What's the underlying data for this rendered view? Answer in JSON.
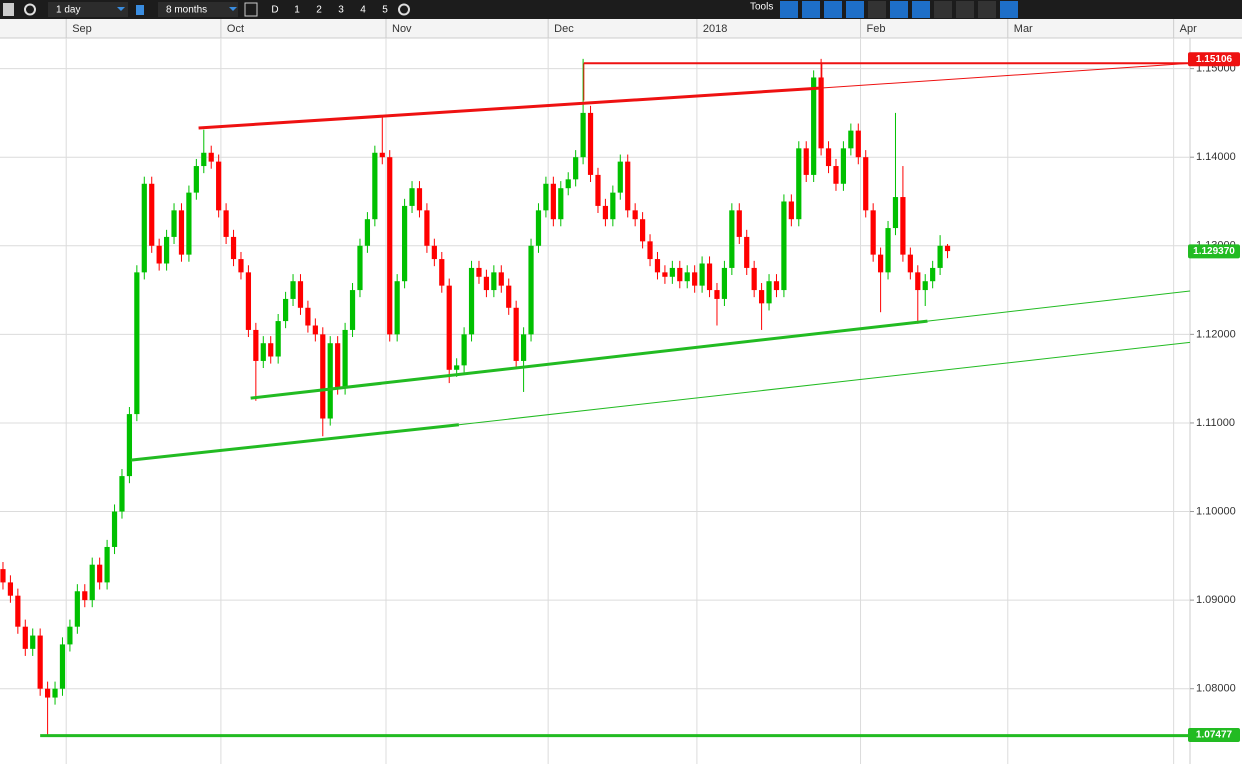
{
  "toolbar": {
    "interval": "1 day",
    "range": "8 months",
    "buttons": [
      "D",
      "1",
      "2",
      "3",
      "4",
      "5"
    ],
    "tools": "Tools"
  },
  "chart_data": {
    "type": "candlestick",
    "xlim": [
      0,
      160
    ],
    "ylim": [
      1.0715,
      1.1556
    ],
    "xticks": [
      {
        "value": 8.9,
        "label": "Sep"
      },
      {
        "value": 29.7,
        "label": "Oct"
      },
      {
        "value": 51.9,
        "label": "Nov"
      },
      {
        "value": 73.7,
        "label": "Dec"
      },
      {
        "value": 93.7,
        "label": "2018"
      },
      {
        "value": 115.7,
        "label": "Feb"
      },
      {
        "value": 135.5,
        "label": "Mar"
      },
      {
        "value": 157.8,
        "label": "Apr"
      }
    ],
    "yticks": [
      {
        "value": 1.08,
        "label": "1.08000"
      },
      {
        "value": 1.09,
        "label": "1.09000"
      },
      {
        "value": 1.1,
        "label": "1.10000"
      },
      {
        "value": 1.11,
        "label": "1.11000"
      },
      {
        "value": 1.12,
        "label": "1.12000"
      },
      {
        "value": 1.13,
        "label": "1.13000"
      },
      {
        "value": 1.14,
        "label": "1.14000"
      },
      {
        "value": 1.15,
        "label": "1.15000"
      }
    ],
    "grid": true,
    "up_color": "#00c000",
    "down_color": "#ff0000",
    "open": [
      1.0935,
      1.092,
      1.0905,
      1.087,
      1.0845,
      1.086,
      1.08,
      1.079,
      1.08,
      1.085,
      1.087,
      1.091,
      1.09,
      1.094,
      1.092,
      1.096,
      1.1,
      1.104,
      1.111,
      1.127,
      1.137,
      1.13,
      1.128,
      1.131,
      1.134,
      1.129,
      1.136,
      1.139,
      1.1405,
      1.1395,
      1.134,
      1.131,
      1.1285,
      1.127,
      1.1205,
      1.117,
      1.119,
      1.1175,
      1.1215,
      1.124,
      1.126,
      1.123,
      1.121,
      1.12,
      1.1105,
      1.119,
      1.114,
      1.1205,
      1.125,
      1.13,
      1.133,
      1.1405,
      1.14,
      1.12,
      1.126,
      1.1345,
      1.1365,
      1.134,
      1.13,
      1.1285,
      1.1255,
      1.116,
      1.1165,
      1.12,
      1.1275,
      1.1265,
      1.125,
      1.127,
      1.1255,
      1.123,
      1.117,
      1.12,
      1.13,
      1.134,
      1.137,
      1.133,
      1.1365,
      1.1375,
      1.14,
      1.145,
      1.138,
      1.1345,
      1.133,
      1.136,
      1.1395,
      1.134,
      1.133,
      1.1305,
      1.1285,
      1.127,
      1.1265,
      1.1275,
      1.126,
      1.127,
      1.1255,
      1.128,
      1.125,
      1.124,
      1.1275,
      1.134,
      1.131,
      1.1275,
      1.125,
      1.1235,
      1.126,
      1.125,
      1.135,
      1.133,
      1.141,
      1.138,
      1.149,
      1.141,
      1.139,
      1.137,
      1.141,
      1.143,
      1.14,
      1.134,
      1.129,
      1.127,
      1.132,
      1.1355,
      1.129,
      1.127,
      1.125,
      1.126,
      1.1275,
      1.13
    ],
    "high": [
      1.0943,
      1.0928,
      1.0913,
      1.0878,
      1.0868,
      1.0868,
      1.0808,
      1.0808,
      1.0858,
      1.0878,
      1.0918,
      1.0918,
      1.0948,
      1.0948,
      1.0968,
      1.1008,
      1.1048,
      1.1118,
      1.1278,
      1.1378,
      1.1378,
      1.1308,
      1.1318,
      1.1348,
      1.1348,
      1.1368,
      1.1398,
      1.1431,
      1.1413,
      1.1403,
      1.1348,
      1.1318,
      1.1293,
      1.1278,
      1.1213,
      1.1198,
      1.1198,
      1.1223,
      1.1248,
      1.1268,
      1.1268,
      1.1238,
      1.1218,
      1.1208,
      1.1198,
      1.1198,
      1.1213,
      1.1258,
      1.1308,
      1.1338,
      1.1413,
      1.1445,
      1.1408,
      1.1268,
      1.1353,
      1.1373,
      1.1373,
      1.1348,
      1.1308,
      1.1293,
      1.1263,
      1.1173,
      1.1208,
      1.1283,
      1.1283,
      1.1273,
      1.1278,
      1.1278,
      1.1263,
      1.1238,
      1.1208,
      1.1308,
      1.1348,
      1.1378,
      1.1378,
      1.1373,
      1.1383,
      1.1408,
      1.1511,
      1.1458,
      1.1388,
      1.1353,
      1.1368,
      1.1403,
      1.1403,
      1.1348,
      1.1338,
      1.1313,
      1.1293,
      1.1278,
      1.1283,
      1.1283,
      1.1278,
      1.1278,
      1.1288,
      1.1288,
      1.1258,
      1.1283,
      1.1348,
      1.1348,
      1.1318,
      1.1283,
      1.1258,
      1.1268,
      1.1268,
      1.1358,
      1.1358,
      1.1418,
      1.1418,
      1.1498,
      1.1511,
      1.1418,
      1.1398,
      1.1418,
      1.1438,
      1.1438,
      1.1408,
      1.1348,
      1.1298,
      1.1328,
      1.145,
      1.139,
      1.1298,
      1.1278,
      1.1268,
      1.1283,
      1.1312,
      1.1302
    ],
    "low": [
      1.0912,
      1.0897,
      1.0862,
      1.0837,
      1.0837,
      1.0792,
      1.0747,
      1.0782,
      1.0792,
      1.0842,
      1.0862,
      1.0892,
      1.0892,
      1.0912,
      1.0912,
      1.0952,
      1.0992,
      1.1032,
      1.1102,
      1.1262,
      1.1292,
      1.1272,
      1.1272,
      1.1302,
      1.1282,
      1.1282,
      1.1352,
      1.1382,
      1.1387,
      1.1332,
      1.1302,
      1.1277,
      1.1262,
      1.1197,
      1.1125,
      1.1162,
      1.1167,
      1.1167,
      1.1207,
      1.1232,
      1.1222,
      1.1202,
      1.1192,
      1.1085,
      1.1097,
      1.1132,
      1.1132,
      1.1197,
      1.1242,
      1.1292,
      1.1322,
      1.1392,
      1.1192,
      1.1192,
      1.1252,
      1.1337,
      1.1332,
      1.1292,
      1.1277,
      1.1247,
      1.1145,
      1.1152,
      1.1157,
      1.1192,
      1.1257,
      1.1242,
      1.1242,
      1.1247,
      1.1222,
      1.1162,
      1.1135,
      1.1192,
      1.1292,
      1.1332,
      1.1322,
      1.1322,
      1.1357,
      1.1367,
      1.1392,
      1.1372,
      1.1337,
      1.1322,
      1.1322,
      1.1352,
      1.1332,
      1.1322,
      1.1297,
      1.1277,
      1.1262,
      1.1257,
      1.1257,
      1.1252,
      1.1252,
      1.1247,
      1.1247,
      1.1242,
      1.121,
      1.1232,
      1.1267,
      1.1302,
      1.1267,
      1.1242,
      1.1205,
      1.1227,
      1.1242,
      1.1242,
      1.1322,
      1.1322,
      1.1372,
      1.1372,
      1.1402,
      1.1382,
      1.1362,
      1.1362,
      1.1402,
      1.1392,
      1.1332,
      1.1282,
      1.1225,
      1.1262,
      1.1312,
      1.1282,
      1.1262,
      1.1212,
      1.1232,
      1.1252,
      1.1267,
      1.1286
    ],
    "close": [
      1.092,
      1.0905,
      1.087,
      1.0845,
      1.086,
      1.08,
      1.079,
      1.08,
      1.085,
      1.087,
      1.091,
      1.09,
      1.094,
      1.092,
      1.096,
      1.1,
      1.104,
      1.111,
      1.127,
      1.137,
      1.13,
      1.128,
      1.131,
      1.134,
      1.129,
      1.136,
      1.139,
      1.1405,
      1.1395,
      1.134,
      1.131,
      1.1285,
      1.127,
      1.1205,
      1.117,
      1.119,
      1.1175,
      1.1215,
      1.124,
      1.126,
      1.123,
      1.121,
      1.12,
      1.1105,
      1.119,
      1.114,
      1.1205,
      1.125,
      1.13,
      1.133,
      1.1405,
      1.14,
      1.12,
      1.126,
      1.1345,
      1.1365,
      1.134,
      1.13,
      1.1285,
      1.1255,
      1.116,
      1.1165,
      1.12,
      1.1275,
      1.1265,
      1.125,
      1.127,
      1.1255,
      1.123,
      1.117,
      1.12,
      1.13,
      1.134,
      1.137,
      1.133,
      1.1365,
      1.1375,
      1.14,
      1.145,
      1.138,
      1.1345,
      1.133,
      1.136,
      1.1395,
      1.134,
      1.133,
      1.1305,
      1.1285,
      1.127,
      1.1265,
      1.1275,
      1.126,
      1.127,
      1.1255,
      1.128,
      1.125,
      1.124,
      1.1275,
      1.134,
      1.131,
      1.1275,
      1.125,
      1.1235,
      1.126,
      1.125,
      1.135,
      1.133,
      1.141,
      1.138,
      1.149,
      1.141,
      1.139,
      1.137,
      1.141,
      1.143,
      1.14,
      1.134,
      1.129,
      1.127,
      1.132,
      1.1355,
      1.129,
      1.127,
      1.125,
      1.126,
      1.1275,
      1.13,
      1.1294
    ],
    "lines": [
      {
        "x": [
          26.7,
          110.2
        ],
        "y": [
          1.1433,
          1.1478
        ],
        "color": "#ee1111",
        "width": 3
      },
      {
        "x": [
          110.2,
          160
        ],
        "y": [
          1.1478,
          1.1506
        ],
        "color": "#ee1111",
        "width": 1
      },
      {
        "x": [
          78.5,
          160
        ],
        "y": [
          1.1506,
          1.1506
        ],
        "color": "#ee1111",
        "width": 2
      },
      {
        "x": [
          78.5,
          78.5
        ],
        "y": [
          1.1506,
          1.1464
        ],
        "color": "#ee1111",
        "width": 1
      },
      {
        "x": [
          110.5,
          110.5
        ],
        "y": [
          1.1506,
          1.1478
        ],
        "color": "#ee1111",
        "width": 1
      },
      {
        "x": [
          17.6,
          61.7
        ],
        "y": [
          1.1058,
          1.1098
        ],
        "color": "#22bb22",
        "width": 3
      },
      {
        "x": [
          61.7,
          160
        ],
        "y": [
          1.1098,
          1.1191
        ],
        "color": "#22bb22",
        "width": 1
      },
      {
        "x": [
          33.7,
          124.7
        ],
        "y": [
          1.1128,
          1.1215
        ],
        "color": "#22bb22",
        "width": 3
      },
      {
        "x": [
          124.7,
          160
        ],
        "y": [
          1.1215,
          1.1249
        ],
        "color": "#22bb22",
        "width": 1
      },
      {
        "x": [
          5.4,
          160
        ],
        "y": [
          1.0747,
          1.0747
        ],
        "color": "#22bb22",
        "width": 3
      }
    ],
    "price_tags": [
      {
        "value": 1.15106,
        "color": "#ee1111"
      },
      {
        "value": 1.12937,
        "label": "1.129370",
        "color": "#22bb22"
      },
      {
        "value": 1.07477,
        "color": "#22bb22"
      }
    ]
  }
}
